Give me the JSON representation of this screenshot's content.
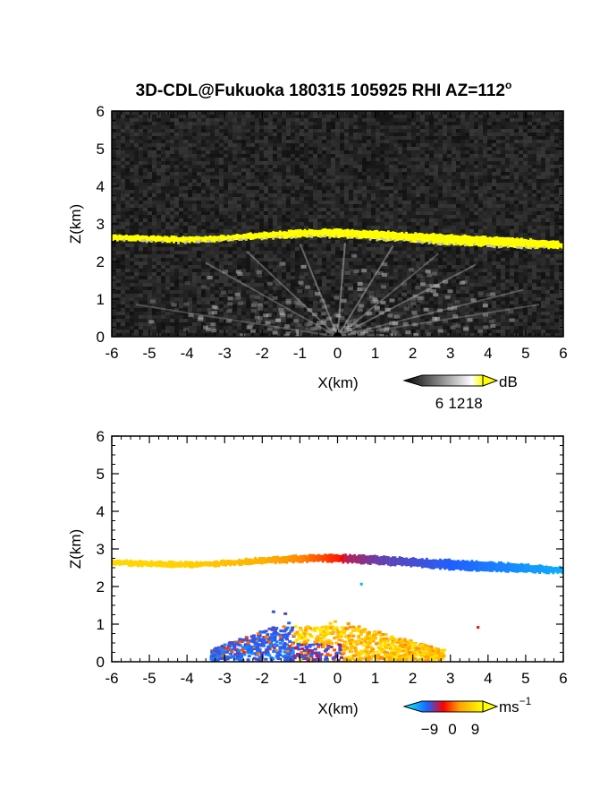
{
  "title": "3D-CDL@Fukuoka 180315 105925 RHI AZ=112",
  "title_superscript": "o",
  "chart_data": [
    {
      "type": "heatmap",
      "quantity": "signal",
      "xlabel": "X(km)",
      "ylabel": "Z(km)",
      "xlim": [
        -6,
        6
      ],
      "ylim": [
        0,
        6
      ],
      "xticks": [
        "-6",
        "-5",
        "-4",
        "-3",
        "-2",
        "-1",
        "0",
        "1",
        "2",
        "3",
        "4",
        "5",
        "6"
      ],
      "yticks": [
        "0",
        "1",
        "2",
        "3",
        "4",
        "5",
        "6"
      ],
      "colorbar": {
        "unit": "dB",
        "ticks": [
          "6",
          "12",
          "18"
        ],
        "range": [
          0,
          21
        ],
        "colors": [
          "#000000",
          "#ffffff",
          "#ffff00"
        ]
      },
      "layer_top": {
        "x": [
          -6,
          -5,
          -4,
          -3,
          -2,
          -1,
          -0.5,
          0,
          1,
          2,
          3,
          4,
          5,
          6
        ],
        "z": [
          2.72,
          2.68,
          2.66,
          2.7,
          2.78,
          2.84,
          2.86,
          2.86,
          2.82,
          2.76,
          2.72,
          2.66,
          2.6,
          2.52
        ]
      },
      "layer_bottom": {
        "x": [
          -6,
          -5,
          -4,
          -3,
          -2,
          -1,
          -0.5,
          0,
          1,
          2,
          3,
          4,
          5,
          6
        ],
        "z": [
          2.56,
          2.52,
          2.5,
          2.54,
          2.6,
          2.64,
          2.66,
          2.64,
          2.58,
          2.52,
          2.44,
          2.4,
          2.36,
          2.34
        ]
      }
    },
    {
      "type": "heatmap",
      "quantity": "doppler velocity",
      "xlabel": "X(km)",
      "ylabel": "Z(km)",
      "xlim": [
        -6,
        6
      ],
      "ylim": [
        0,
        6
      ],
      "xticks": [
        "-6",
        "-5",
        "-4",
        "-3",
        "-2",
        "-1",
        "0",
        "1",
        "2",
        "3",
        "4",
        "5",
        "6"
      ],
      "yticks": [
        "0",
        "1",
        "2",
        "3",
        "4",
        "5",
        "6"
      ],
      "colorbar": {
        "unit": "ms",
        "unit_exponent": "−1",
        "ticks": [
          "−9",
          "0",
          "9"
        ],
        "range": [
          -12,
          12
        ],
        "colors": [
          "#00ffff",
          "#1f5fff",
          "#ff0000",
          "#ffa000",
          "#ffff00"
        ]
      },
      "layer_velocity": {
        "x": [
          -6,
          -4,
          -2,
          -1,
          0,
          0.2,
          1,
          2,
          3,
          4,
          5,
          6
        ],
        "v": [
          9.5,
          9,
          7,
          5,
          1,
          -2,
          -4,
          -5,
          -6,
          -7,
          -8,
          -9
        ]
      },
      "low_echo": {
        "x_range": [
          -3.4,
          2.8
        ],
        "z_range": [
          0,
          1.7
        ],
        "west_velocity": "negative",
        "east_velocity": "positive"
      }
    }
  ]
}
